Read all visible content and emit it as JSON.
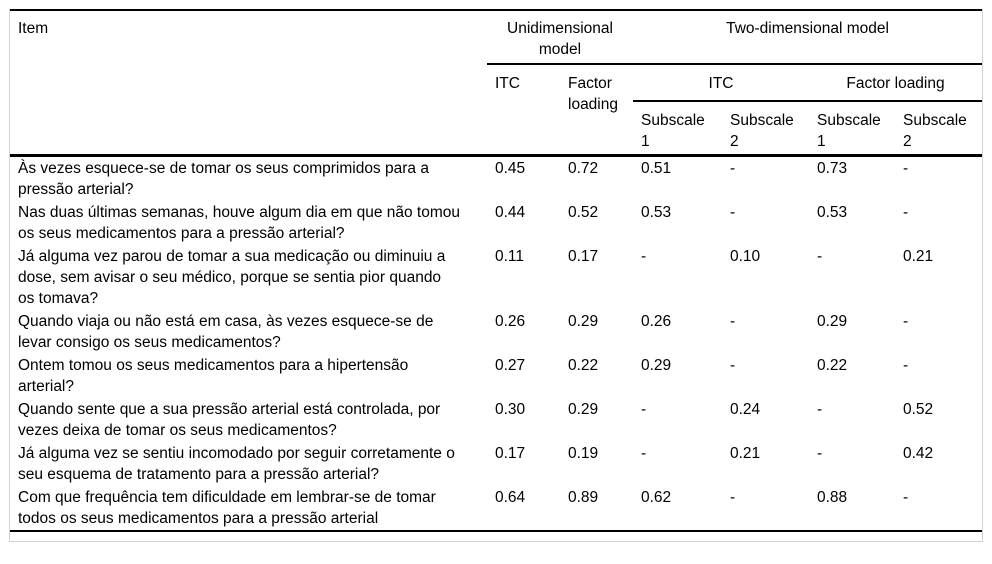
{
  "table": {
    "header": {
      "item": "Item",
      "unidimensional": "Unidimensional model",
      "two_dimensional": "Two-dimensional model",
      "itc_uni": "ITC",
      "factor_loading_uni": "Factor loading",
      "itc_two": "ITC",
      "factor_loading_two": "Factor loading",
      "subscales": [
        "Subscale 1",
        "Subscale 2",
        "Subscale 1",
        "Subscale 2"
      ]
    },
    "rows": [
      {
        "item": "Às vezes esquece-se de tomar os seus comprimidos para a pressão arterial?",
        "values": [
          "0.45",
          "0.72",
          "0.51",
          "-",
          "0.73",
          "-"
        ]
      },
      {
        "item": "Nas duas últimas semanas, houve algum dia em que não tomou os seus medicamentos para a pressão arterial?",
        "values": [
          "0.44",
          "0.52",
          "0.53",
          "-",
          "0.53",
          "-"
        ]
      },
      {
        "item": "Já alguma vez parou de tomar a sua medicação ou diminuiu a dose, sem avisar o seu médico, porque se sentia pior quando os tomava?",
        "values": [
          "0.11",
          "0.17",
          "-",
          "0.10",
          "-",
          "0.21"
        ]
      },
      {
        "item": "Quando viaja ou não está em casa, às vezes esquece-se de levar consigo os seus medicamentos?",
        "values": [
          "0.26",
          "0.29",
          "0.26",
          "-",
          "0.29",
          "-"
        ]
      },
      {
        "item": "Ontem tomou os seus medicamentos para a hipertensão arterial?",
        "values": [
          "0.27",
          "0.22",
          "0.29",
          "-",
          "0.22",
          "-"
        ]
      },
      {
        "item": "Quando sente que a sua pressão arterial está controlada, por vezes deixa de tomar os seus medicamentos?",
        "values": [
          "0.30",
          "0.29",
          "-",
          "0.24",
          "-",
          "0.52"
        ]
      },
      {
        "item": "Já alguma vez se sentiu incomodado por seguir corretamente o seu esquema de tratamento para a pressão arterial?",
        "values": [
          "0.17",
          "0.19",
          "-",
          "0.21",
          "-",
          "0.42"
        ]
      },
      {
        "item": "Com que frequência tem dificuldade em lembrar-se de tomar todos os seus medicamentos para a pressão arterial",
        "values": [
          "0.64",
          "0.89",
          "0.62",
          "-",
          "0.88",
          "-"
        ]
      }
    ],
    "colors": {
      "rule": "#000000",
      "frame_edge": "#d4d4d4",
      "background": "#ffffff",
      "text": "#000000"
    }
  }
}
